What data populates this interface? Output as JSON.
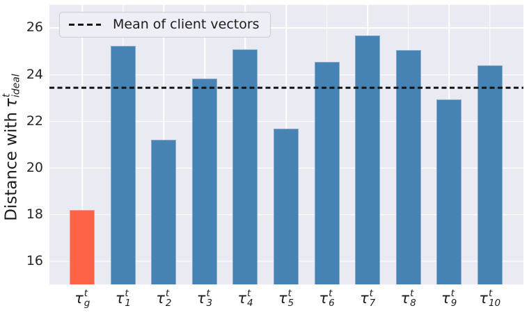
{
  "chart_data": {
    "type": "bar",
    "title": "",
    "ylabel": {
      "prefix": "Distance with",
      "tau": "τ",
      "sup": "t",
      "sub": "ideal"
    },
    "categories": [
      {
        "base": "τ",
        "sup": "t",
        "sub": "g"
      },
      {
        "base": "τ",
        "sup": "t",
        "sub": "1"
      },
      {
        "base": "τ",
        "sup": "t",
        "sub": "2"
      },
      {
        "base": "τ",
        "sup": "t",
        "sub": "3"
      },
      {
        "base": "τ",
        "sup": "t",
        "sub": "4"
      },
      {
        "base": "τ",
        "sup": "t",
        "sub": "5"
      },
      {
        "base": "τ",
        "sup": "t",
        "sub": "6"
      },
      {
        "base": "τ",
        "sup": "t",
        "sub": "7"
      },
      {
        "base": "τ",
        "sup": "t",
        "sub": "8"
      },
      {
        "base": "τ",
        "sup": "t",
        "sub": "9"
      },
      {
        "base": "τ",
        "sup": "t",
        "sub": "10"
      }
    ],
    "values": [
      18.2,
      25.25,
      21.2,
      23.85,
      25.1,
      21.7,
      24.55,
      25.7,
      25.05,
      22.95,
      24.4
    ],
    "bar_colors": [
      "#FF6347",
      "#4682B4",
      "#4682B4",
      "#4682B4",
      "#4682B4",
      "#4682B4",
      "#4682B4",
      "#4682B4",
      "#4682B4",
      "#4682B4",
      "#4682B4"
    ],
    "highlight_color": "#FF6347",
    "default_color": "#4682B4",
    "ylim": [
      15,
      27
    ],
    "yticks": [
      16,
      18,
      20,
      22,
      24,
      26
    ],
    "grid": true,
    "plot_background": "#EAEAF2",
    "grid_color": "#FFFFFF",
    "mean_line": {
      "value": 23.45,
      "color": "#141414",
      "style": "dashed",
      "label": "Mean of client vectors"
    },
    "legend": {
      "position": "upper left",
      "entries": [
        {
          "label": "Mean of client vectors",
          "marker": "dashed-line"
        }
      ]
    }
  }
}
